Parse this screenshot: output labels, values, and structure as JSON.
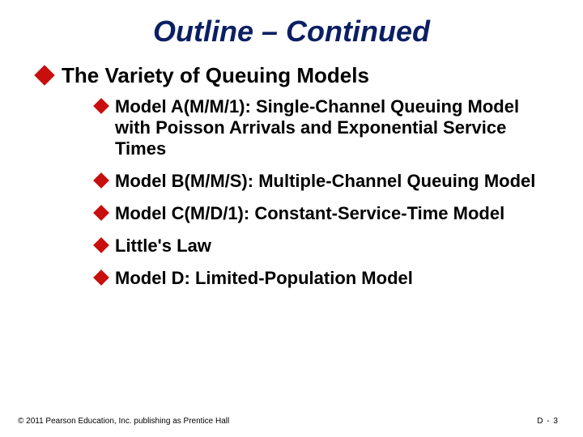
{
  "title": {
    "text": "Outline – Continued",
    "color": "#0b1f63",
    "fontsize": 36
  },
  "bullet": {
    "level1_size": 18,
    "level2_size": 14,
    "color": "#c90e0e"
  },
  "level1": {
    "text": "The Variety of Queuing Models",
    "fontsize": 26,
    "color": "#000000"
  },
  "level2_items": [
    "Model A(M/M/1): Single-Channel Queuing Model with Poisson Arrivals and Exponential Service Times",
    "Model B(M/M/S): Multiple-Channel Queuing Model",
    "Model C(M/D/1): Constant-Service-Time Model",
    "Little's Law",
    "Model D: Limited-Population Model"
  ],
  "level2_style": {
    "fontsize": 22,
    "color": "#000000"
  },
  "footer": {
    "copyright": "© 2011 Pearson Education, Inc. publishing as Prentice Hall",
    "page": "D - 3",
    "fontsize": 10,
    "color": "#000000"
  }
}
